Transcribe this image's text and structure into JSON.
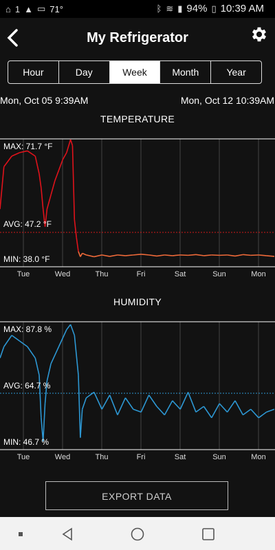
{
  "status_bar": {
    "temp": "71°",
    "left_icons": [
      "home-icon",
      "sim-1-icon",
      "warning-icon",
      "voicemail-icon"
    ],
    "right_icons": [
      "bluetooth-icon",
      "wifi-icon",
      "signal-icon",
      "battery-icon"
    ],
    "battery": "94%",
    "time": "10:39 AM"
  },
  "header": {
    "title": "My Refrigerator",
    "back_icon": "back-chevron-icon",
    "settings_icon": "gear-icon"
  },
  "tabs": [
    {
      "label": "Hour",
      "active": false
    },
    {
      "label": "Day",
      "active": false
    },
    {
      "label": "Week",
      "active": true
    },
    {
      "label": "Month",
      "active": false
    },
    {
      "label": "Year",
      "active": false
    }
  ],
  "date_range": {
    "start": "Mon, Oct 05 9:39AM",
    "end": "Mon, Oct 12 10:39AM"
  },
  "temperature": {
    "title": "TEMPERATURE",
    "max_label": "MAX: 71.7 °F",
    "avg_label": "AVG: 47.2 °F",
    "min_label": "MIN: 38.0 °F"
  },
  "humidity": {
    "title": "HUMIDITY",
    "max_label": "MAX: 87.8 %",
    "avg_label": "AVG: 64.7 %",
    "min_label": "MIN: 46.7 %"
  },
  "export_label": "EXPORT DATA",
  "colors": {
    "temp_high": "#e0121b",
    "temp_low": "#f26b3a",
    "humidity": "#2d98d4",
    "avg_line_temp": "#d31a1a",
    "avg_line_hum": "#2d98d4"
  },
  "chart_data": [
    {
      "type": "line",
      "title": "TEMPERATURE",
      "unit": "°F",
      "x_ticks": [
        "Tue",
        "Wed",
        "Thu",
        "Fri",
        "Sat",
        "Sun",
        "Mon"
      ],
      "ylim": [
        38.0,
        71.7
      ],
      "max": 71.7,
      "avg": 47.2,
      "min": 38.0,
      "series": [
        {
          "x": [
            0,
            0.1,
            0.3,
            0.5,
            0.7,
            0.9,
            1.0,
            1.05,
            1.1,
            1.15,
            1.2,
            1.3,
            1.4,
            1.5,
            1.6,
            1.7,
            1.8,
            1.85,
            1.9,
            1.95,
            2.0,
            2.05,
            2.1,
            2.2,
            2.4,
            2.6,
            2.8,
            3.0,
            3.2,
            3.4,
            3.6,
            3.8,
            4.0,
            4.2,
            4.4,
            4.6,
            4.8,
            5.0,
            5.2,
            5.4,
            5.6,
            5.8,
            6.0,
            6.2,
            6.4,
            6.6,
            6.8,
            7.0
          ],
          "y": [
            52,
            64,
            67,
            68,
            68.5,
            67,
            62,
            58,
            52,
            47,
            52,
            56,
            60,
            63,
            66,
            68,
            71.7,
            70,
            49,
            44,
            40,
            38.5,
            39.5,
            39,
            38.5,
            39,
            38.6,
            39,
            38.8,
            39,
            39.2,
            39,
            38.7,
            39,
            38.8,
            39,
            38.9,
            39.1,
            38.8,
            39,
            38.9,
            39,
            38.7,
            39.1,
            38.9,
            39,
            38.8,
            38.6
          ]
        }
      ]
    },
    {
      "type": "line",
      "title": "HUMIDITY",
      "unit": "%",
      "x_ticks": [
        "Tue",
        "Wed",
        "Thu",
        "Fri",
        "Sat",
        "Sun",
        "Mon"
      ],
      "ylim": [
        46.7,
        87.8
      ],
      "max": 87.8,
      "avg": 64.7,
      "min": 46.7,
      "series": [
        {
          "x": [
            0,
            0.1,
            0.3,
            0.5,
            0.7,
            0.9,
            1.0,
            1.05,
            1.1,
            1.15,
            1.2,
            1.3,
            1.5,
            1.7,
            1.8,
            1.9,
            2.0,
            2.05,
            2.1,
            2.2,
            2.4,
            2.6,
            2.8,
            3.0,
            3.2,
            3.4,
            3.6,
            3.8,
            4.0,
            4.2,
            4.4,
            4.6,
            4.8,
            5.0,
            5.2,
            5.4,
            5.6,
            5.8,
            6.0,
            6.2,
            6.4,
            6.6,
            6.8,
            7.0
          ],
          "y": [
            76,
            80,
            84,
            82,
            80,
            76,
            70,
            55,
            46.7,
            60,
            68,
            74,
            80,
            86,
            87.8,
            84,
            70,
            48,
            58,
            62,
            64,
            58,
            63,
            56,
            62,
            58,
            57,
            63,
            59,
            56,
            61,
            58,
            64,
            57,
            59,
            55,
            60,
            57,
            61,
            56,
            58,
            55,
            57,
            58
          ]
        }
      ]
    }
  ]
}
